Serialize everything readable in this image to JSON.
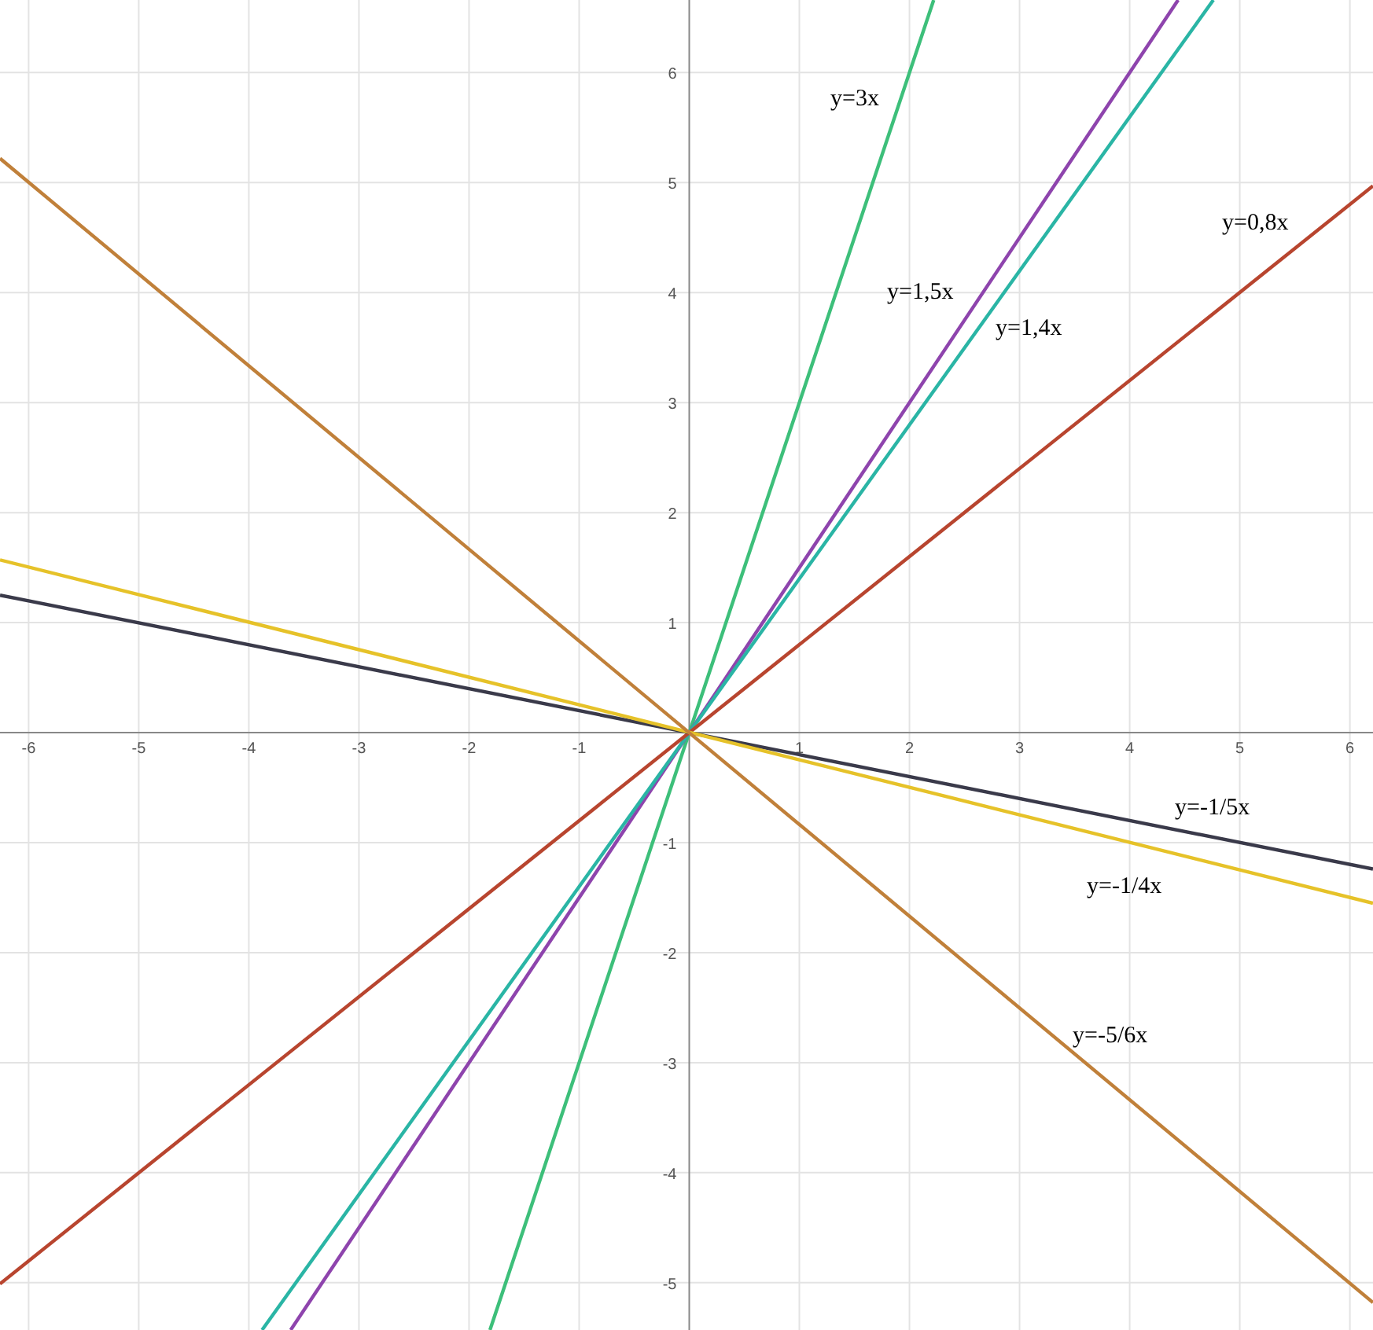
{
  "chart_data": {
    "type": "line",
    "xlim": [
      -6.26,
      6.21
    ],
    "ylim": [
      -5.43,
      6.66
    ],
    "xticks": [
      -6,
      -5,
      -4,
      -3,
      -2,
      -1,
      1,
      2,
      3,
      4,
      5,
      6
    ],
    "yticks": [
      -5,
      -4,
      -3,
      -2,
      -1,
      1,
      2,
      3,
      4,
      5,
      6
    ],
    "grid": true,
    "marker": "none",
    "line_style": "solid",
    "series": [
      {
        "name": "y=3x",
        "color": "#3dbf7a",
        "x": [
          -1.81,
          2.22
        ],
        "values": [
          -5.43,
          6.66
        ]
      },
      {
        "name": "y=1,5x",
        "color": "#8e44ad",
        "x": [
          -3.62,
          4.44
        ],
        "values": [
          -5.43,
          6.66
        ]
      },
      {
        "name": "y=1,4x",
        "color": "#2ab5a5",
        "x": [
          -3.88,
          4.76
        ],
        "values": [
          -5.43,
          6.66
        ]
      },
      {
        "name": "y=0,8x",
        "color": "#b8452f",
        "x": [
          -6.26,
          6.21
        ],
        "values": [
          -5.01,
          4.97
        ]
      },
      {
        "name": "y=-1/5x",
        "color": "#3a3a4a",
        "x": [
          -6.26,
          6.21
        ],
        "values": [
          1.25,
          -1.24
        ]
      },
      {
        "name": "y=-1/4x",
        "color": "#e6c229",
        "x": [
          -6.26,
          6.21
        ],
        "values": [
          1.57,
          -1.55
        ]
      },
      {
        "name": "y=-5/6x",
        "color": "#c0803a",
        "x": [
          -6.26,
          6.21
        ],
        "values": [
          5.22,
          -5.18
        ]
      }
    ]
  }
}
